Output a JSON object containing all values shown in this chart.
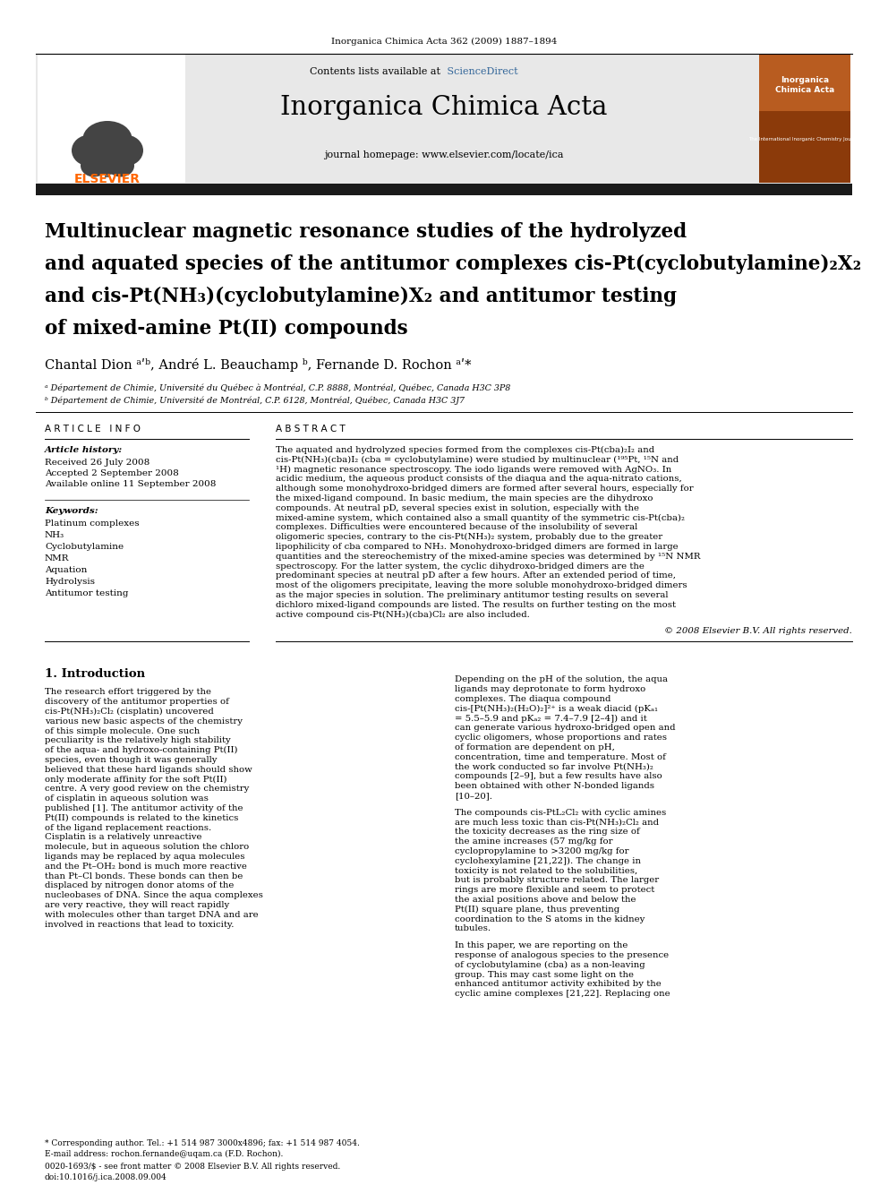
{
  "journal_ref": "Inorganica Chimica Acta 362 (2009) 1887–1894",
  "contents_line": "Contents lists available at ScienceDirect",
  "sciencedirect_color": "#336699",
  "journal_name": "Inorganica Chimica Acta",
  "journal_homepage": "journal homepage: www.elsevier.com/locate/ica",
  "elsevier_color": "#ff6600",
  "header_bg": "#e8e8e8",
  "title_line1": "Multinuclear magnetic resonance studies of the hydrolyzed",
  "title_line2": "and aquated species of the antitumor complexes cis-Pt(cyclobutylamine)₂X₂",
  "title_line3": "and cis-Pt(NH₃)(cyclobutylamine)X₂ and antitumor testing",
  "title_line4": "of mixed-amine Pt(II) compounds",
  "authors": "Chantal Dion ᵃʹᵇ, André L. Beauchamp ᵇ, Fernande D. Rochon ᵃʹ*",
  "affil_a": "ᵃ Département de Chimie, Université du Québec à Montréal, C.P. 8888, Montréal, Québec, Canada H3C 3P8",
  "affil_b": "ᵇ Département de Chimie, Université de Montréal, C.P. 6128, Montréal, Québec, Canada H3C 3J7",
  "article_info_header": "A R T I C L E   I N F O",
  "abstract_header": "A B S T R A C T",
  "article_history_label": "Article history:",
  "received": "Received 26 July 2008",
  "accepted": "Accepted 2 September 2008",
  "available": "Available online 11 September 2008",
  "keywords_label": "Keywords:",
  "keywords": [
    "Platinum complexes",
    "NH₃",
    "Cyclobutylamine",
    "NMR",
    "Aquation",
    "Hydrolysis",
    "Antitumor testing"
  ],
  "abstract_text": "The aquated and hydrolyzed species formed from the complexes cis-Pt(cba)₂I₂ and cis-Pt(NH₃)(cba)I₂ (cba = cyclobutylamine) were studied by multinuclear (¹⁹⁵Pt, ¹⁵N and ¹H) magnetic resonance spectroscopy. The iodo ligands were removed with AgNO₃. In acidic medium, the aqueous product consists of the diaqua and the aqua-nitrato cations, although some monohydroxo-bridged dimers are formed after several hours, especially for the mixed-ligand compound. In basic medium, the main species are the dihydroxo compounds. At neutral pD, several species exist in solution, especially with the mixed-amine system, which contained also a small quantity of the symmetric cis-Pt(cba)₂ complexes. Difficulties were encountered because of the insolubility of several oligomeric species, contrary to the cis-Pt(NH₃)₂ system, probably due to the greater lipophilicity of cba compared to NH₃. Monohydroxo-bridged dimers are formed in large quantities and the stereochemistry of the mixed-amine species was determined by ¹⁵N NMR spectroscopy. For the latter system, the cyclic dihydroxo-bridged dimers are the predominant species at neutral pD after a few hours. After an extended period of time, most of the oligomers precipitate, leaving the more soluble monohydroxo-bridged dimers as the major species in solution. The preliminary antitumor testing results on several dichloro mixed-ligand compounds are listed. The results on further testing on the most active compound cis-Pt(NH₃)(cba)Cl₂ are also included.",
  "copyright": "© 2008 Elsevier B.V. All rights reserved.",
  "section1_header": "1. Introduction",
  "intro_left": "The research effort triggered by the discovery of the antitumor properties of cis-Pt(NH₃)₂Cl₂ (cisplatin) uncovered various new basic aspects of the chemistry of this simple molecule. One such peculiarity is the relatively high stability of the aqua- and hydroxo-containing Pt(II) species, even though it was generally believed that these hard ligands should show only moderate affinity for the soft Pt(II) centre. A very good review on the chemistry of cisplatin in aqueous solution was published [1]. The antitumor activity of the Pt(II) compounds is related to the kinetics of the ligand replacement reactions. Cisplatin is a relatively unreactive molecule, but in aqueous solution the chloro ligands may be replaced by aqua molecules and the Pt–OH₂ bond is much more reactive than Pt–Cl bonds. These bonds can then be displaced by nitrogen donor atoms of the nucleobases of DNA. Since the aqua complexes are very reactive, they will react rapidly with molecules other than target DNA and are involved in reactions that lead to toxicity.",
  "intro_right_1": "Depending on the pH of the solution, the aqua ligands may deprotonate to form hydroxo complexes. The diaqua compound cis-[Pt(NH₃)₂(H₂O)₂]²⁺ is a weak diacid (pKₐ₁ = 5.5–5.9 and pKₐ₂ = 7.4–7.9 [2–4]) and it can generate various hydroxo-bridged open and cyclic oligomers, whose proportions and rates of formation are dependent on pH, concentration, time and temperature. Most of the work conducted so far involve Pt(NH₃)₂ compounds [2–9], but a few results have also been obtained with other N-bonded ligands [10–20].",
  "intro_right_2": "The compounds cis-PtL₂Cl₂ with cyclic amines are much less toxic than cis-Pt(NH₃)₂Cl₂ and the toxicity decreases as the ring size of the amine increases (57 mg/kg for cyclopropylamine to >3200 mg/kg for cyclohexylamine [21,22]). The change in toxicity is not related to the solubilities, but is probably structure related. The larger rings are more flexible and seem to protect the axial positions above and below the Pt(II) square plane, thus preventing coordination to the S atoms in the kidney tubules.",
  "intro_right_3": "In this paper, we are reporting on the response of analogous species to the presence of cyclobutylamine (cba) as a non-leaving group. This may cast some light on the enhanced antitumor activity exhibited by the cyclic amine complexes [21,22]. Replacing one",
  "footnote_star": "* Corresponding author. Tel.: +1 514 987 3000x4896; fax: +1 514 987 4054.",
  "footnote_email": "E-mail address: rochon.fernande@uqam.ca (F.D. Rochon).",
  "issn_line": "0020-1693/$ - see front matter © 2008 Elsevier B.V. All rights reserved.",
  "doi_line": "doi:10.1016/j.ica.2008.09.004",
  "bg_color": "#ffffff",
  "text_color": "#000000",
  "dark_bar_color": "#1a1a1a",
  "cover_color": "#b85c20"
}
